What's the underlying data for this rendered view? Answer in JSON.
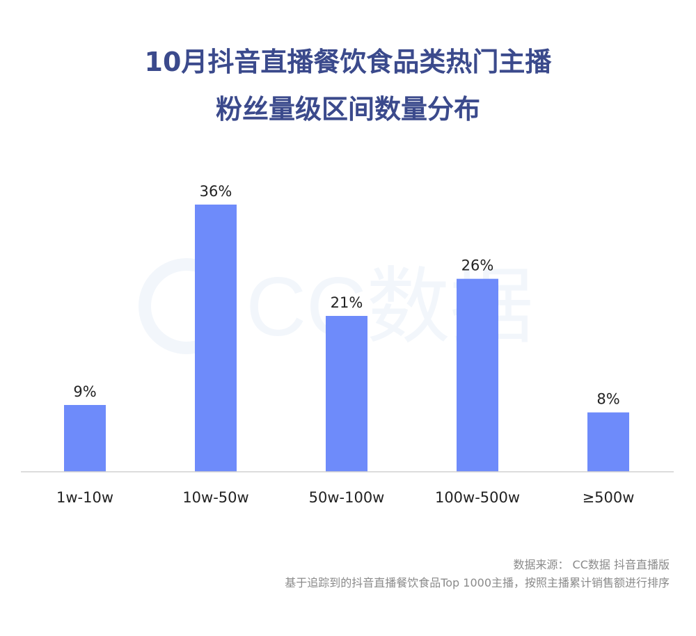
{
  "title_line1": "10月抖音直播餐饮食品类热门主播",
  "title_line2": "粉丝量级区间数量分布",
  "watermark": "CC数据",
  "source_line1": "数据来源： CC数据 抖音直播版",
  "source_line2": "基于追踪到的抖音直播餐饮食品Top 1000主播，按照主播累计销售额进行排序",
  "colors": {
    "bar": "#6e8bfa",
    "title": "#3b4a8c",
    "axis": "#d0d0d0",
    "watermark": "#f2f6fb"
  },
  "chart_data": {
    "type": "bar",
    "categories": [
      "1w-10w",
      "10w-50w",
      "50w-100w",
      "100w-500w",
      "≥500w"
    ],
    "values": [
      9,
      36,
      21,
      26,
      8
    ],
    "value_labels": [
      "9%",
      "36%",
      "21%",
      "26%",
      "8%"
    ],
    "unit": "%",
    "title": "10月抖音直播餐饮食品类热门主播 粉丝量级区间数量分布",
    "xlabel": "",
    "ylabel": "",
    "grid": false,
    "legend": "none"
  }
}
